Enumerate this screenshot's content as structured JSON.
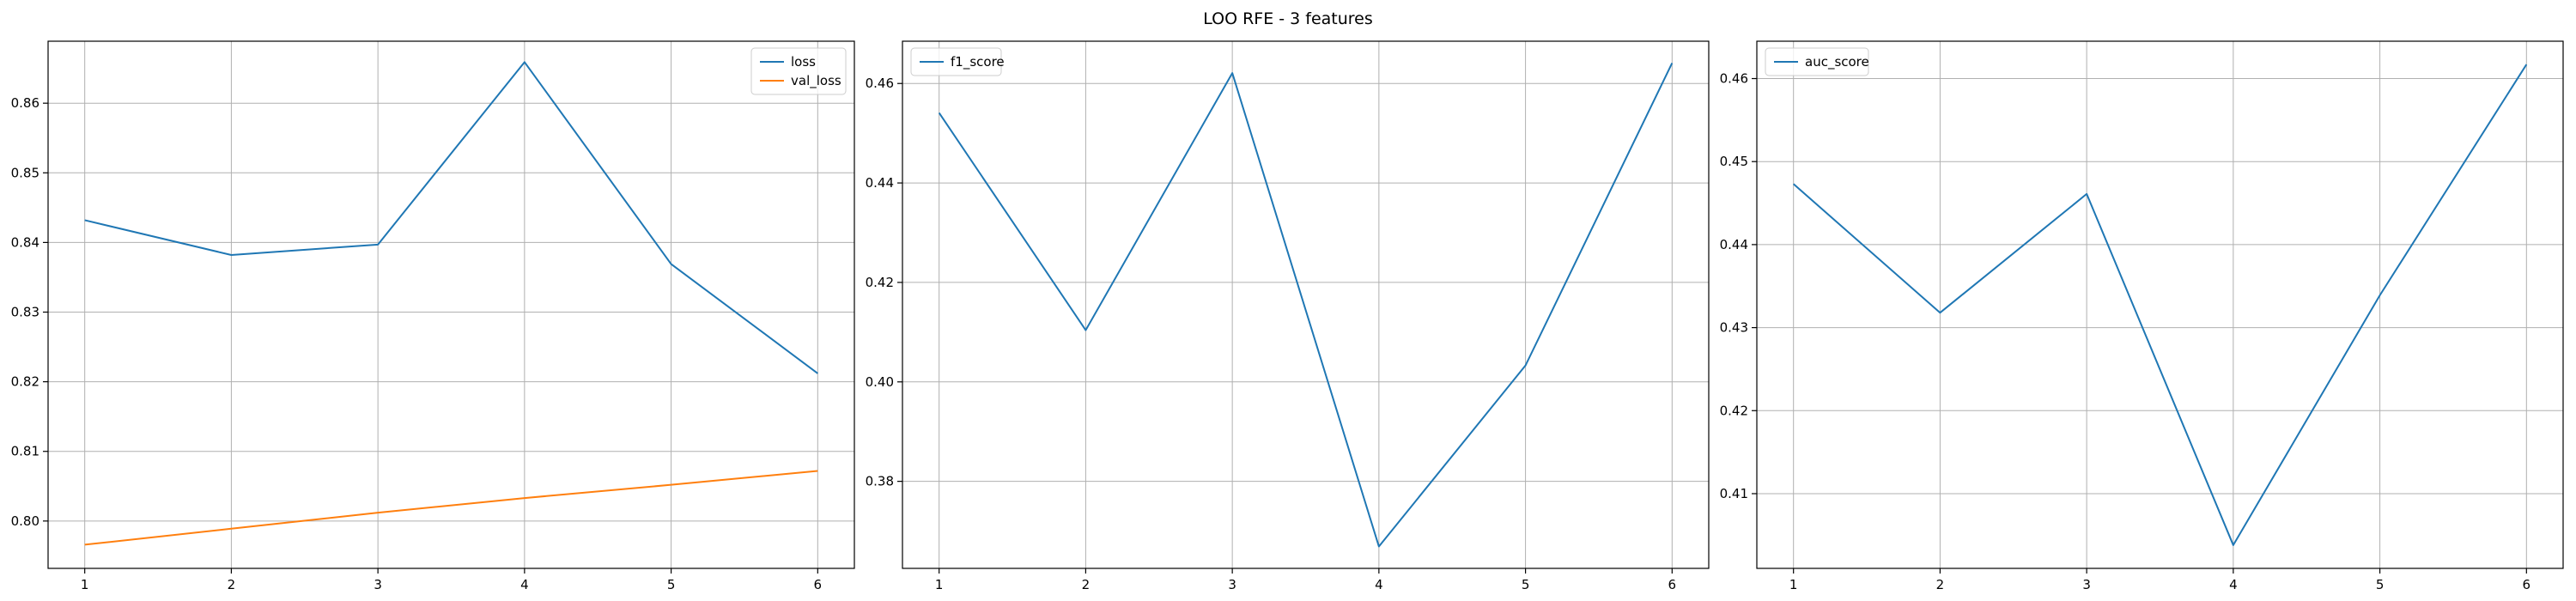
{
  "figure": {
    "title": "LOO RFE - 3 features"
  },
  "chart_data": [
    {
      "type": "line",
      "title": "",
      "xlabel": "",
      "ylabel": "",
      "x": [
        1,
        2,
        3,
        4,
        5,
        6
      ],
      "xlim": [
        0.75,
        6.25
      ],
      "ylim": [
        0.7932,
        0.8689
      ],
      "xticks": [
        "1",
        "2",
        "3",
        "4",
        "5",
        "6"
      ],
      "yticks": [
        "0.80",
        "0.81",
        "0.82",
        "0.83",
        "0.84",
        "0.85",
        "0.86"
      ],
      "ytick_values": [
        0.8,
        0.81,
        0.82,
        0.83,
        0.84,
        0.85,
        0.86
      ],
      "grid": true,
      "legend": "top-right",
      "series": [
        {
          "name": "loss",
          "color": "#1f77b4",
          "values": [
            0.8432,
            0.8382,
            0.8397,
            0.8659,
            0.8369,
            0.8212
          ]
        },
        {
          "name": "val_loss",
          "color": "#ff7f0e",
          "values": [
            0.7966,
            0.7989,
            0.8012,
            0.8033,
            0.8052,
            0.8072
          ]
        }
      ]
    },
    {
      "type": "line",
      "title": "",
      "xlabel": "",
      "ylabel": "",
      "x": [
        1,
        2,
        3,
        4,
        5,
        6
      ],
      "xlim": [
        0.75,
        6.25
      ],
      "ylim": [
        0.3625,
        0.4685
      ],
      "xticks": [
        "1",
        "2",
        "3",
        "4",
        "5",
        "6"
      ],
      "yticks": [
        "0.38",
        "0.40",
        "0.42",
        "0.44",
        "0.46"
      ],
      "ytick_values": [
        0.38,
        0.4,
        0.42,
        0.44,
        0.46
      ],
      "grid": true,
      "legend": "top-left",
      "series": [
        {
          "name": "f1_score",
          "color": "#1f77b4",
          "values": [
            0.4541,
            0.4104,
            0.4621,
            0.3669,
            0.4033,
            0.4641
          ]
        }
      ]
    },
    {
      "type": "line",
      "title": "",
      "xlabel": "",
      "ylabel": "",
      "x": [
        1,
        2,
        3,
        4,
        5,
        6
      ],
      "xlim": [
        0.75,
        6.25
      ],
      "ylim": [
        0.401,
        0.4645
      ],
      "xticks": [
        "1",
        "2",
        "3",
        "4",
        "5",
        "6"
      ],
      "yticks": [
        "0.41",
        "0.42",
        "0.43",
        "0.44",
        "0.45",
        "0.46"
      ],
      "ytick_values": [
        0.41,
        0.42,
        0.43,
        0.44,
        0.45,
        0.46
      ],
      "grid": true,
      "legend": "top-left",
      "series": [
        {
          "name": "auc_score",
          "color": "#1f77b4",
          "values": [
            0.4473,
            0.4318,
            0.4461,
            0.4038,
            0.4339,
            0.4617
          ]
        }
      ]
    }
  ]
}
